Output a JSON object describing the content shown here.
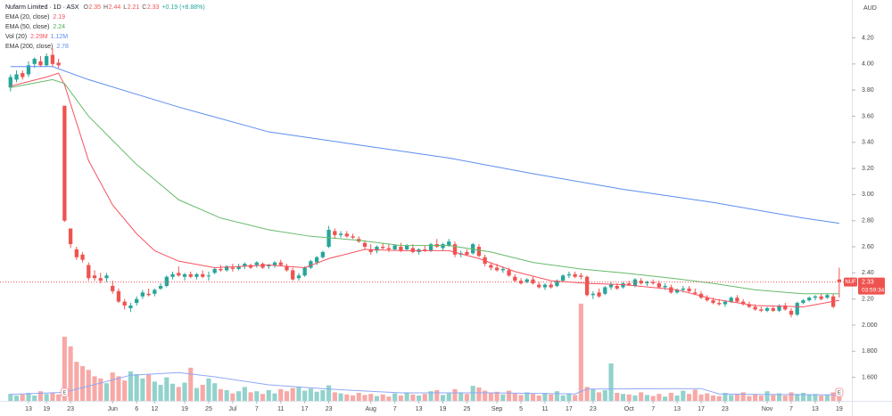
{
  "header": {
    "title": "Nufarm Limited · 1D · ASX",
    "ohlc": [
      {
        "key": "O",
        "text": "2.35"
      },
      {
        "key": "H",
        "text": "2.44"
      },
      {
        "key": "L",
        "text": "2.21"
      },
      {
        "key": "C",
        "text": "2.33"
      }
    ],
    "change": "+0.19 (+8.88%)"
  },
  "chart_data": {
    "type": "candlestick",
    "currency": "AUD",
    "up_color": "#26a69a",
    "down_color": "#ef5350",
    "grid": false,
    "open": [
      3.82,
      3.88,
      3.93,
      3.92,
      4.0,
      4.02,
      3.99,
      4.07,
      4.01,
      3.68,
      2.74,
      2.58,
      2.54,
      2.46,
      2.38,
      2.36,
      2.36,
      2.3,
      2.26,
      2.18,
      2.13,
      2.17,
      2.22,
      2.24,
      2.24,
      2.28,
      2.3,
      2.37,
      2.4,
      2.37,
      2.39,
      2.37,
      2.39,
      2.38,
      2.4,
      2.43,
      2.42,
      2.44,
      2.43,
      2.45,
      2.46,
      2.46,
      2.47,
      2.45,
      2.46,
      2.48,
      2.45,
      2.42,
      2.36,
      2.38,
      2.44,
      2.48,
      2.52,
      2.6,
      2.72,
      2.69,
      2.7,
      2.68,
      2.66,
      2.63,
      2.58,
      2.57,
      2.6,
      2.59,
      2.58,
      2.6,
      2.58,
      2.59,
      2.56,
      2.58,
      2.57,
      2.62,
      2.59,
      2.61,
      2.62,
      2.54,
      2.56,
      2.55,
      2.6,
      2.52,
      2.46,
      2.44,
      2.42,
      2.42,
      2.37,
      2.34,
      2.33,
      2.35,
      2.31,
      2.29,
      2.31,
      2.3,
      2.34,
      2.38,
      2.39,
      2.38,
      2.37,
      2.23,
      2.25,
      2.24,
      2.29,
      2.3,
      2.29,
      2.32,
      2.3,
      2.34,
      2.32,
      2.33,
      2.32,
      2.29,
      2.29,
      2.25,
      2.27,
      2.28,
      2.25,
      2.24,
      2.21,
      2.19,
      2.17,
      2.16,
      2.18,
      2.21,
      2.18,
      2.16,
      2.14,
      2.12,
      2.11,
      2.13,
      2.11,
      2.15,
      2.11,
      2.08,
      2.17,
      2.19,
      2.21,
      2.22,
      2.21,
      2.22,
      2.35
    ],
    "high": [
      3.92,
      3.95,
      3.95,
      4.02,
      4.05,
      4.06,
      4.08,
      4.12,
      4.04,
      3.68,
      2.74,
      2.6,
      2.56,
      2.48,
      2.42,
      2.4,
      2.4,
      2.34,
      2.28,
      2.2,
      2.17,
      2.22,
      2.27,
      2.28,
      2.28,
      2.32,
      2.38,
      2.41,
      2.45,
      2.4,
      2.41,
      2.4,
      2.42,
      2.41,
      2.44,
      2.46,
      2.46,
      2.47,
      2.47,
      2.48,
      2.47,
      2.49,
      2.48,
      2.47,
      2.49,
      2.5,
      2.47,
      2.44,
      2.4,
      2.45,
      2.5,
      2.53,
      2.57,
      2.76,
      2.74,
      2.72,
      2.72,
      2.7,
      2.68,
      2.65,
      2.62,
      2.61,
      2.63,
      2.62,
      2.62,
      2.63,
      2.62,
      2.62,
      2.59,
      2.61,
      2.63,
      2.66,
      2.63,
      2.66,
      2.64,
      2.57,
      2.58,
      2.63,
      2.62,
      2.54,
      2.48,
      2.47,
      2.45,
      2.44,
      2.39,
      2.36,
      2.36,
      2.37,
      2.33,
      2.32,
      2.33,
      2.35,
      2.39,
      2.41,
      2.41,
      2.4,
      2.38,
      2.26,
      2.28,
      2.3,
      2.33,
      2.32,
      2.33,
      2.34,
      2.36,
      2.36,
      2.34,
      2.35,
      2.34,
      2.32,
      2.31,
      2.28,
      2.3,
      2.3,
      2.28,
      2.26,
      2.23,
      2.21,
      2.2,
      2.19,
      2.22,
      2.23,
      2.2,
      2.18,
      2.16,
      2.14,
      2.14,
      2.15,
      2.16,
      2.17,
      2.13,
      2.18,
      2.2,
      2.22,
      2.23,
      2.24,
      2.24,
      2.24,
      2.44
    ],
    "low": [
      3.79,
      3.86,
      3.88,
      3.9,
      3.97,
      3.98,
      3.98,
      3.98,
      3.97,
      2.79,
      2.59,
      2.5,
      2.48,
      2.34,
      2.34,
      2.32,
      2.33,
      2.24,
      2.17,
      2.12,
      2.1,
      2.15,
      2.2,
      2.22,
      2.22,
      2.27,
      2.29,
      2.35,
      2.37,
      2.34,
      2.36,
      2.35,
      2.36,
      2.34,
      2.39,
      2.41,
      2.41,
      2.41,
      2.42,
      2.43,
      2.43,
      2.44,
      2.43,
      2.43,
      2.44,
      2.45,
      2.41,
      2.34,
      2.34,
      2.37,
      2.43,
      2.46,
      2.51,
      2.59,
      2.66,
      2.67,
      2.67,
      2.66,
      2.63,
      2.58,
      2.54,
      2.55,
      2.58,
      2.56,
      2.57,
      2.56,
      2.57,
      2.55,
      2.54,
      2.56,
      2.56,
      2.59,
      2.57,
      2.6,
      2.52,
      2.52,
      2.53,
      2.54,
      2.52,
      2.45,
      2.42,
      2.41,
      2.4,
      2.37,
      2.33,
      2.31,
      2.32,
      2.31,
      2.28,
      2.27,
      2.28,
      2.29,
      2.33,
      2.36,
      2.36,
      2.35,
      2.22,
      2.2,
      2.21,
      2.23,
      2.27,
      2.27,
      2.28,
      2.3,
      2.29,
      2.31,
      2.3,
      2.31,
      2.28,
      2.27,
      2.24,
      2.24,
      2.25,
      2.25,
      2.23,
      2.2,
      2.18,
      2.16,
      2.15,
      2.14,
      2.17,
      2.17,
      2.15,
      2.13,
      2.11,
      2.1,
      2.1,
      2.1,
      2.1,
      2.11,
      2.06,
      2.07,
      2.16,
      2.18,
      2.19,
      2.19,
      2.2,
      2.13,
      2.21
    ],
    "close": [
      3.9,
      3.92,
      3.9,
      3.99,
      4.04,
      3.99,
      4.06,
      4.0,
      3.99,
      2.8,
      2.62,
      2.52,
      2.5,
      2.36,
      2.36,
      2.34,
      2.38,
      2.26,
      2.18,
      2.15,
      2.15,
      2.2,
      2.25,
      2.23,
      2.27,
      2.3,
      2.37,
      2.39,
      2.38,
      2.39,
      2.37,
      2.39,
      2.37,
      2.38,
      2.43,
      2.42,
      2.45,
      2.43,
      2.45,
      2.47,
      2.44,
      2.48,
      2.44,
      2.46,
      2.48,
      2.46,
      2.42,
      2.35,
      2.38,
      2.44,
      2.49,
      2.52,
      2.56,
      2.73,
      2.69,
      2.7,
      2.68,
      2.67,
      2.64,
      2.6,
      2.56,
      2.6,
      2.59,
      2.58,
      2.61,
      2.57,
      2.61,
      2.56,
      2.58,
      2.57,
      2.62,
      2.6,
      2.62,
      2.64,
      2.54,
      2.55,
      2.54,
      2.62,
      2.53,
      2.47,
      2.44,
      2.42,
      2.43,
      2.38,
      2.34,
      2.32,
      2.35,
      2.32,
      2.29,
      2.31,
      2.29,
      2.34,
      2.38,
      2.39,
      2.37,
      2.37,
      2.23,
      2.24,
      2.22,
      2.29,
      2.31,
      2.28,
      2.32,
      2.31,
      2.35,
      2.32,
      2.33,
      2.32,
      2.29,
      2.3,
      2.25,
      2.27,
      2.28,
      2.26,
      2.24,
      2.21,
      2.19,
      2.17,
      2.16,
      2.18,
      2.21,
      2.18,
      2.16,
      2.14,
      2.12,
      2.11,
      2.13,
      2.11,
      2.15,
      2.12,
      2.08,
      2.17,
      2.19,
      2.21,
      2.22,
      2.2,
      2.23,
      2.14,
      2.33
    ],
    "volume": [
      1.3,
      1.0,
      1.2,
      1.5,
      1.0,
      1.8,
      1.3,
      1.5,
      1.2,
      12.0,
      10.2,
      7.3,
      6.5,
      5.8,
      4.6,
      4.2,
      3.3,
      5.3,
      4.6,
      3.8,
      5.5,
      5.0,
      4.2,
      4.9,
      3.6,
      3.0,
      4.4,
      3.2,
      2.6,
      3.4,
      6.2,
      2.4,
      3.0,
      4.2,
      3.3,
      2.2,
      2.0,
      1.4,
      1.8,
      2.6,
      1.6,
      1.8,
      1.3,
      2.0,
      1.4,
      2.2,
      1.8,
      2.4,
      2.6,
      1.9,
      2.3,
      1.7,
      2.0,
      2.9,
      1.6,
      1.4,
      1.2,
      1.0,
      1.5,
      1.1,
      1.3,
      0.9,
      1.2,
      0.8,
      1.4,
      1.0,
      1.6,
      1.2,
      1.0,
      1.3,
      1.8,
      2.0,
      1.1,
      1.4,
      2.2,
      1.6,
      1.3,
      2.8,
      2.5,
      1.9,
      1.5,
      1.7,
      1.2,
      1.9,
      1.4,
      1.1,
      1.6,
      1.3,
      1.0,
      1.5,
      1.2,
      1.8,
      1.0,
      1.4,
      1.1,
      18.2,
      2.6,
      2.2,
      1.6,
      2.0,
      7.0,
      1.5,
      1.3,
      1.2,
      1.0,
      1.6,
      1.1,
      0.9,
      1.3,
      0.8,
      1.5,
      1.0,
      1.9,
      1.3,
      2.1,
      1.2,
      1.4,
      1.0,
      0.9,
      1.5,
      1.1,
      1.3,
      1.6,
      0.9,
      1.2,
      1.0,
      1.8,
      1.1,
      1.4,
      1.0,
      1.6,
      1.3,
      1.5,
      1.1,
      1.3,
      1.0,
      1.2,
      1.6,
      2.29
    ],
    "xlim": [
      -1.75,
      140.1
    ],
    "xticks": [
      {
        "value": 3,
        "label": "13"
      },
      {
        "value": 6,
        "label": "19"
      },
      {
        "value": 10,
        "label": "23"
      },
      {
        "value": 17,
        "label": "Jun"
      },
      {
        "value": 21,
        "label": "6"
      },
      {
        "value": 24,
        "label": "12"
      },
      {
        "value": 29,
        "label": "19"
      },
      {
        "value": 33,
        "label": "25"
      },
      {
        "value": 37,
        "label": "Jul"
      },
      {
        "value": 41,
        "label": "7"
      },
      {
        "value": 45,
        "label": "11"
      },
      {
        "value": 49,
        "label": "17"
      },
      {
        "value": 53,
        "label": "23"
      },
      {
        "value": 60,
        "label": "Aug"
      },
      {
        "value": 64,
        "label": "7"
      },
      {
        "value": 68,
        "label": "13"
      },
      {
        "value": 72,
        "label": "19"
      },
      {
        "value": 76,
        "label": "25"
      },
      {
        "value": 81,
        "label": "Sep"
      },
      {
        "value": 85,
        "label": "5"
      },
      {
        "value": 89,
        "label": "11"
      },
      {
        "value": 93,
        "label": "17"
      },
      {
        "value": 97,
        "label": "23"
      },
      {
        "value": 103,
        "label": "Oct"
      },
      {
        "value": 107,
        "label": "7"
      },
      {
        "value": 111,
        "label": "13"
      },
      {
        "value": 115,
        "label": "17"
      },
      {
        "value": 119,
        "label": "23"
      },
      {
        "value": 126,
        "label": "Nov"
      },
      {
        "value": 130,
        "label": "7"
      },
      {
        "value": 134,
        "label": "13"
      },
      {
        "value": 138,
        "label": "19"
      }
    ],
    "ylim": [
      1.42,
      4.49
    ],
    "yticks": [
      {
        "value": 1.6,
        "label": "1.600"
      },
      {
        "value": 1.8,
        "label": "1.800"
      },
      {
        "value": 2.0,
        "label": "2.000"
      },
      {
        "value": 2.2,
        "label": "2.20"
      },
      {
        "value": 2.4,
        "label": "2.40"
      },
      {
        "value": 2.6,
        "label": "2.60"
      },
      {
        "value": 2.8,
        "label": "2.80"
      },
      {
        "value": 3.0,
        "label": "3.00"
      },
      {
        "value": 3.2,
        "label": "3.20"
      },
      {
        "value": 3.4,
        "label": "3.40"
      },
      {
        "value": 3.6,
        "label": "3.60"
      },
      {
        "value": 3.8,
        "label": "3.80"
      },
      {
        "value": 4.0,
        "label": "4.00"
      },
      {
        "value": 4.2,
        "label": "4.20"
      }
    ],
    "y2lim": [
      0,
      75
    ],
    "series": [
      {
        "name": "EMA (20, close)",
        "color": "#f7525f",
        "legend_values": [
          {
            "text": "2.19",
            "color": "#f7525f"
          }
        ],
        "x": [
          0,
          6,
          8,
          9,
          13,
          17,
          21,
          24,
          28,
          34,
          43,
          49,
          53,
          59,
          65,
          73,
          78,
          84,
          90,
          96,
          102,
          111,
          117,
          124,
          132,
          138
        ],
        "values": [
          3.83,
          3.9,
          3.93,
          3.84,
          3.26,
          2.92,
          2.7,
          2.57,
          2.49,
          2.44,
          2.46,
          2.44,
          2.51,
          2.58,
          2.57,
          2.57,
          2.51,
          2.41,
          2.34,
          2.32,
          2.31,
          2.27,
          2.2,
          2.15,
          2.14,
          2.19
        ]
      },
      {
        "name": "EMA (50, close)",
        "color": "#66bb6a",
        "legend_values": [
          {
            "text": "2.24",
            "color": "#4caf50"
          }
        ],
        "x": [
          0,
          7,
          9,
          13,
          21,
          28,
          35,
          43,
          50,
          58,
          65,
          73,
          80,
          87,
          95,
          102,
          110,
          117,
          124,
          132,
          138
        ],
        "values": [
          3.82,
          3.88,
          3.85,
          3.6,
          3.23,
          2.96,
          2.82,
          2.73,
          2.68,
          2.65,
          2.61,
          2.61,
          2.56,
          2.48,
          2.43,
          2.4,
          2.36,
          2.32,
          2.27,
          2.24,
          2.24
        ]
      },
      {
        "name": "Vol (20)",
        "color": "#8fa8f5",
        "axis": "y2",
        "legend_values": [
          {
            "text": "2.29M",
            "color": "#f7525f"
          },
          {
            "text": "1.12M",
            "color": "#5b8def"
          }
        ],
        "x": [
          0,
          9,
          20,
          28,
          34,
          43,
          53,
          65,
          80,
          94,
          96,
          115,
          118,
          124,
          138
        ],
        "values": [
          1.2,
          1.6,
          4.8,
          5.3,
          4.5,
          3.0,
          2.2,
          1.5,
          1.5,
          1.3,
          2.2,
          2.3,
          1.3,
          1.2,
          1.12
        ]
      },
      {
        "name": "EMA (200, close)",
        "color": "#5b8def",
        "legend_values": [
          {
            "text": "2.78",
            "color": "#5b8def"
          }
        ],
        "x": [
          0,
          7,
          13,
          28,
          43,
          58,
          73,
          87,
          102,
          117,
          132,
          138
        ],
        "values": [
          3.98,
          3.98,
          3.88,
          3.67,
          3.48,
          3.38,
          3.28,
          3.16,
          3.04,
          2.94,
          2.82,
          2.78
        ]
      }
    ],
    "last_price": {
      "symbol": "NUF",
      "value": 2.33,
      "countdown": "03:59:34"
    },
    "events": [
      {
        "x": 9,
        "label": "E"
      },
      {
        "x": 138,
        "label": "E"
      }
    ]
  }
}
